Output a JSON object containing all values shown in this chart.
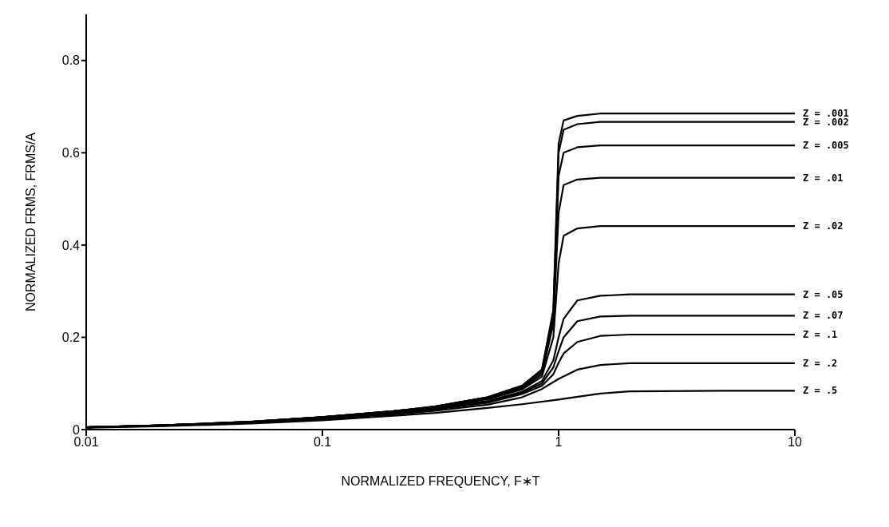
{
  "chart_data": {
    "type": "line",
    "xlabel": "NORMALIZED FREQUENCY, F∗T",
    "ylabel": "NORMALIZED FRMS, FRMS/A",
    "log": "x",
    "xlim": [
      0.01,
      10
    ],
    "xticks": [
      0.01,
      0.1,
      1,
      10
    ],
    "ylim": [
      0,
      0.9
    ],
    "yticks": [
      0,
      0.2,
      0.4,
      0.6,
      0.8
    ],
    "grid": false,
    "legend": false,
    "marker": "none",
    "line_style": "solid",
    "series": [
      {
        "name": "Z = .001",
        "color": "#000000",
        "x": [
          0.01,
          0.02,
          0.05,
          0.1,
          0.2,
          0.3,
          0.5,
          0.7,
          0.85,
          0.95,
          1.0,
          1.05,
          1.2,
          1.5,
          2,
          5,
          10
        ],
        "values": [
          0.005,
          0.009,
          0.017,
          0.027,
          0.04,
          0.05,
          0.07,
          0.095,
          0.13,
          0.26,
          0.62,
          0.67,
          0.68,
          0.685,
          0.685,
          0.685,
          0.685
        ]
      },
      {
        "name": "Z = .002",
        "color": "#000000",
        "x": [
          0.01,
          0.02,
          0.05,
          0.1,
          0.2,
          0.3,
          0.5,
          0.7,
          0.85,
          0.95,
          1.0,
          1.05,
          1.2,
          1.5,
          2,
          5,
          10
        ],
        "values": [
          0.005,
          0.009,
          0.017,
          0.027,
          0.04,
          0.05,
          0.07,
          0.095,
          0.13,
          0.25,
          0.6,
          0.65,
          0.662,
          0.667,
          0.667,
          0.667,
          0.667
        ]
      },
      {
        "name": "Z = .005",
        "color": "#000000",
        "x": [
          0.01,
          0.02,
          0.05,
          0.1,
          0.2,
          0.3,
          0.5,
          0.7,
          0.85,
          0.95,
          1.0,
          1.05,
          1.2,
          1.5,
          2,
          5,
          10
        ],
        "values": [
          0.005,
          0.009,
          0.017,
          0.027,
          0.04,
          0.05,
          0.07,
          0.093,
          0.125,
          0.24,
          0.55,
          0.6,
          0.612,
          0.616,
          0.616,
          0.616,
          0.616
        ]
      },
      {
        "name": "Z = .01",
        "color": "#000000",
        "x": [
          0.01,
          0.02,
          0.05,
          0.1,
          0.2,
          0.3,
          0.5,
          0.7,
          0.85,
          0.95,
          1.0,
          1.05,
          1.2,
          1.5,
          2,
          5,
          10
        ],
        "values": [
          0.005,
          0.009,
          0.017,
          0.027,
          0.039,
          0.049,
          0.068,
          0.09,
          0.12,
          0.23,
          0.47,
          0.53,
          0.542,
          0.546,
          0.546,
          0.546,
          0.546
        ]
      },
      {
        "name": "Z = .02",
        "color": "#000000",
        "x": [
          0.01,
          0.02,
          0.05,
          0.1,
          0.2,
          0.3,
          0.5,
          0.7,
          0.85,
          0.95,
          1.0,
          1.05,
          1.2,
          1.5,
          2,
          5,
          10
        ],
        "values": [
          0.005,
          0.009,
          0.016,
          0.026,
          0.038,
          0.048,
          0.066,
          0.087,
          0.115,
          0.2,
          0.36,
          0.42,
          0.436,
          0.441,
          0.441,
          0.441,
          0.441
        ]
      },
      {
        "name": "Z = .05",
        "color": "#000000",
        "x": [
          0.01,
          0.02,
          0.05,
          0.1,
          0.2,
          0.3,
          0.5,
          0.7,
          0.85,
          0.95,
          1.0,
          1.05,
          1.2,
          1.5,
          2,
          5,
          10
        ],
        "values": [
          0.005,
          0.009,
          0.016,
          0.025,
          0.037,
          0.046,
          0.062,
          0.082,
          0.105,
          0.15,
          0.2,
          0.24,
          0.28,
          0.29,
          0.293,
          0.293,
          0.293
        ]
      },
      {
        "name": "Z = .07",
        "color": "#000000",
        "x": [
          0.01,
          0.02,
          0.05,
          0.1,
          0.2,
          0.3,
          0.5,
          0.7,
          0.85,
          0.95,
          1.0,
          1.05,
          1.2,
          1.5,
          2,
          5,
          10
        ],
        "values": [
          0.005,
          0.009,
          0.016,
          0.025,
          0.036,
          0.045,
          0.06,
          0.08,
          0.1,
          0.135,
          0.17,
          0.2,
          0.235,
          0.245,
          0.247,
          0.247,
          0.247
        ]
      },
      {
        "name": "Z = .1",
        "color": "#000000",
        "x": [
          0.01,
          0.02,
          0.05,
          0.1,
          0.2,
          0.3,
          0.5,
          0.7,
          0.85,
          0.95,
          1.0,
          1.05,
          1.2,
          1.5,
          2,
          5,
          10
        ],
        "values": [
          0.005,
          0.008,
          0.015,
          0.024,
          0.035,
          0.044,
          0.058,
          0.077,
          0.095,
          0.12,
          0.145,
          0.165,
          0.19,
          0.203,
          0.206,
          0.206,
          0.206
        ]
      },
      {
        "name": "Z = .2",
        "color": "#000000",
        "x": [
          0.01,
          0.02,
          0.05,
          0.1,
          0.2,
          0.3,
          0.5,
          0.7,
          0.85,
          1.0,
          1.2,
          1.5,
          2,
          5,
          10
        ],
        "values": [
          0.005,
          0.008,
          0.015,
          0.023,
          0.033,
          0.041,
          0.054,
          0.07,
          0.088,
          0.11,
          0.13,
          0.14,
          0.144,
          0.144,
          0.144
        ]
      },
      {
        "name": "Z = .5",
        "color": "#000000",
        "x": [
          0.01,
          0.02,
          0.05,
          0.1,
          0.2,
          0.3,
          0.5,
          0.7,
          1.0,
          1.5,
          2,
          5,
          10
        ],
        "values": [
          0.004,
          0.007,
          0.013,
          0.02,
          0.03,
          0.036,
          0.047,
          0.055,
          0.065,
          0.078,
          0.083,
          0.084,
          0.084
        ]
      }
    ]
  }
}
